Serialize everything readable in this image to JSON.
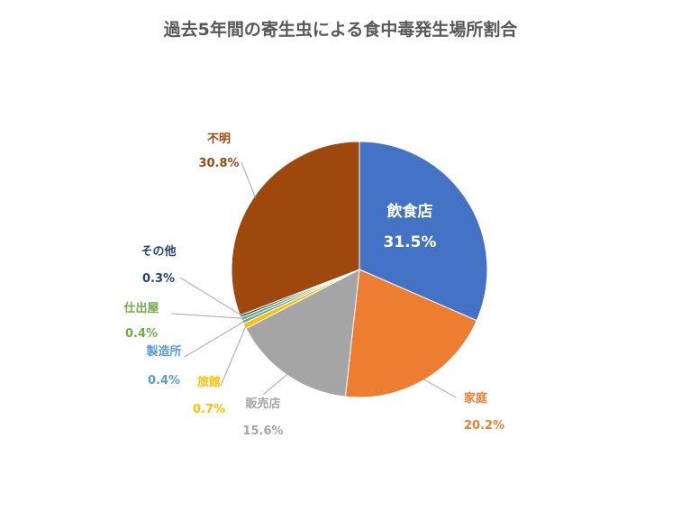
{
  "chart_data": {
    "type": "pie",
    "title": "過去5年間の寄生虫による食中毒発生場所割合",
    "slices": [
      {
        "label": "飲食店",
        "value": 31.5,
        "display": "31.5%",
        "color": "#4472C4"
      },
      {
        "label": "家庭",
        "value": 20.2,
        "display": "20.2%",
        "color": "#ED7D31"
      },
      {
        "label": "販売店",
        "value": 15.6,
        "display": "15.6%",
        "color": "#A5A5A5"
      },
      {
        "label": "旅館",
        "value": 0.7,
        "display": "0.7%",
        "color": "#FFC000"
      },
      {
        "label": "製造所",
        "value": 0.4,
        "display": "0.4%",
        "color": "#5B9BD5"
      },
      {
        "label": "仕出屋",
        "value": 0.4,
        "display": "0.4%",
        "color": "#70AD47"
      },
      {
        "label": "その他",
        "value": 0.3,
        "display": "0.3%",
        "color": "#264478"
      },
      {
        "label": "不明",
        "value": 30.8,
        "display": "30.8%",
        "color": "#9E480E"
      }
    ],
    "legend": "none",
    "start_angle": "12 o'clock",
    "direction": "clockwise"
  }
}
